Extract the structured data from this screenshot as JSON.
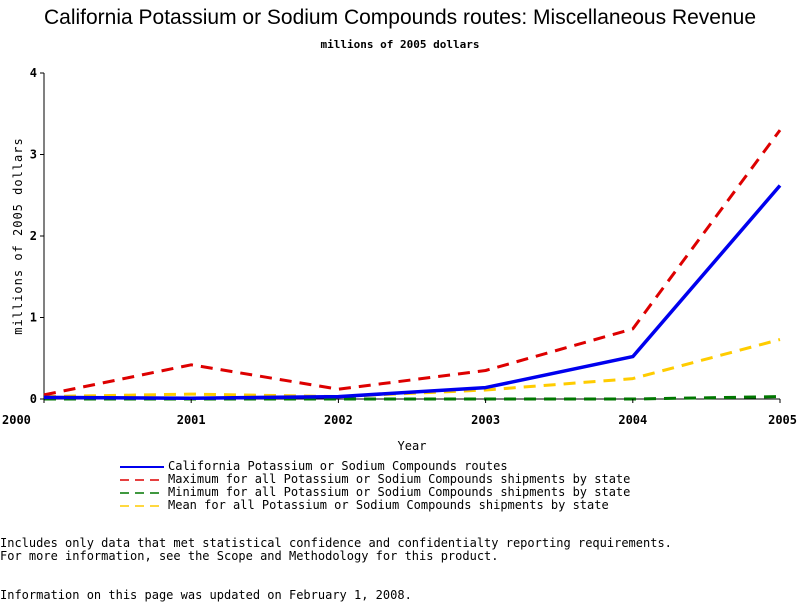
{
  "chart_data": {
    "type": "line",
    "title": "California Potassium or Sodium Compounds routes: Miscellaneous Revenue",
    "subtitle": "millions of 2005 dollars",
    "xlabel": "Year",
    "ylabel": "millions of 2005 dollars",
    "x": [
      2000,
      2001,
      2002,
      2003,
      2004,
      2005
    ],
    "x_tick_labels": [
      "2000",
      "2001",
      "2002",
      "2003",
      "2004",
      "2005"
    ],
    "xlim": [
      2000,
      2005
    ],
    "ylim": [
      0,
      4
    ],
    "y_ticks": [
      0,
      1,
      2,
      3,
      4
    ],
    "y_tick_labels": [
      "0",
      "1",
      "2",
      "3",
      "4"
    ],
    "grid": false,
    "legend_position": "bottom",
    "series": [
      {
        "name": "California Potassium or Sodium Compounds routes",
        "values": [
          0.02,
          0.01,
          0.03,
          0.14,
          0.52,
          2.62
        ],
        "color": "#0000ee",
        "dash": "solid",
        "width": 3.5
      },
      {
        "name": "Maximum for all Potassium or Sodium Compounds shipments by state",
        "values": [
          0.05,
          0.42,
          0.12,
          0.35,
          0.86,
          3.3
        ],
        "color": "#dd0000",
        "dash": "12,8",
        "width": 3
      },
      {
        "name": "Minimum for all Potassium or Sodium Compounds shipments by state",
        "values": [
          0.0,
          0.0,
          0.0,
          0.0,
          0.0,
          0.03
        ],
        "color": "#007700",
        "dash": "12,8",
        "width": 3
      },
      {
        "name": "Mean for all Potassium or Sodium Compounds shipments by state",
        "values": [
          0.03,
          0.06,
          0.03,
          0.11,
          0.25,
          0.73
        ],
        "color": "#ffcc00",
        "dash": "12,8",
        "width": 3
      }
    ]
  },
  "footnotes": {
    "line1": "Includes only data that met statistical confidence and confidentialty reporting requirements.",
    "line2": "For more information, see the Scope and Methodology for this product.",
    "updated": "Information on this page was updated on February 1, 2008."
  }
}
